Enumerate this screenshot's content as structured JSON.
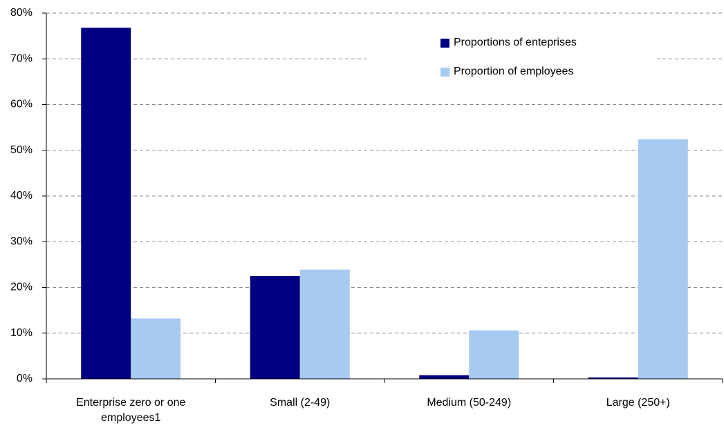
{
  "chart_data": {
    "type": "bar",
    "categories": [
      "Enterprise zero or one employees1",
      "Small (2-49)",
      "Medium (50-249)",
      "Large (250+)"
    ],
    "series": [
      {
        "name": "Proportions of enteprises",
        "color": "#000080",
        "values": [
          76.8,
          22.5,
          0.8,
          0.3
        ]
      },
      {
        "name": "Proportion of employees",
        "color": "#a6caf0",
        "values": [
          13.2,
          23.9,
          10.6,
          52.4
        ]
      }
    ],
    "ylim": [
      0,
      80
    ],
    "yticks": [
      {
        "value": 0,
        "label": "0%"
      },
      {
        "value": 10,
        "label": "10%"
      },
      {
        "value": 20,
        "label": "20%"
      },
      {
        "value": 30,
        "label": "30%"
      },
      {
        "value": 40,
        "label": "40%"
      },
      {
        "value": 50,
        "label": "50%"
      },
      {
        "value": 60,
        "label": "60%"
      },
      {
        "value": 70,
        "label": "70%"
      },
      {
        "value": 80,
        "label": "80%"
      }
    ],
    "grid": true
  }
}
